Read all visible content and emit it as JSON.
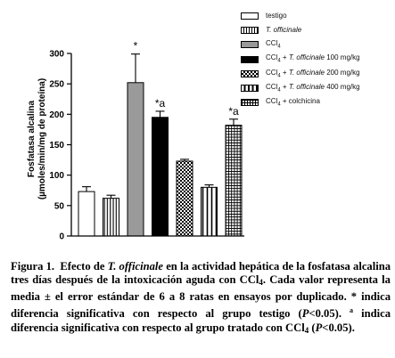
{
  "chart_data": {
    "type": "bar",
    "ylabel_line1": "Fosfatasa alcalina",
    "ylabel_line2": "(µmoles/min/mg de proteína)",
    "ylim": [
      0,
      300
    ],
    "yticks": [
      "0",
      "50",
      "100",
      "150",
      "200",
      "250",
      "300"
    ],
    "bars": [
      {
        "legend": "testigo",
        "value": 73,
        "error": 8,
        "pattern": "white",
        "annotation": ""
      },
      {
        "legend": "T. officinale",
        "value": 62,
        "error": 5,
        "pattern": "vlines",
        "annotation": ""
      },
      {
        "legend": "CCl4",
        "value": 252,
        "error": 47,
        "pattern": "gray",
        "annotation": "*"
      },
      {
        "legend": "CCl4 + T. officinale 100 mg/kg",
        "value": 195,
        "error": 10,
        "pattern": "black",
        "annotation": "*a"
      },
      {
        "legend": "CCl4 + T. officinale 200 mg/kg",
        "value": 123,
        "error": 3,
        "pattern": "checker",
        "annotation": ""
      },
      {
        "legend": "CCl4 + T. officinale 400 mg/kg",
        "value": 80,
        "error": 4,
        "pattern": "vlines-wide",
        "annotation": ""
      },
      {
        "legend": "CCl4 + colchicina",
        "value": 182,
        "error": 10,
        "pattern": "grid",
        "annotation": "*a"
      }
    ],
    "colors": {
      "gray": "#9a9a9a",
      "black": "#000000"
    }
  },
  "caption": {
    "figure_label": "Figura 1.",
    "title_a": "Efecto de",
    "title_species": "T. officinale",
    "title_b": "en la actividad hepática de la fosfatasa alcalina tres días después de la intoxicación aguda con CCl",
    "title_sub": "4",
    "text_a": ". Cada valor representa la media ± el error estándar de 6 a 8 ratas en ensayos por duplicado. * indica diferencia significativa con respecto al grupo testigo (",
    "p_label": "P",
    "text_b": "<0.05). ",
    "sup_a": "a",
    "text_c": " indica diferencia significativa con respecto al grupo tratado con CCl",
    "text_sub": "4",
    "text_d": " (",
    "p_label_2": "P",
    "text_e": "<0.05)."
  }
}
